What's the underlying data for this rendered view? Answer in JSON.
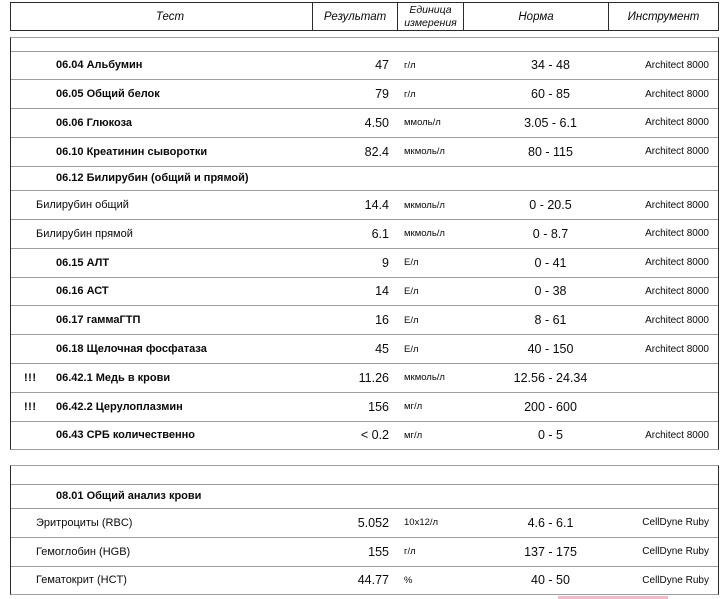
{
  "colors": {
    "text": "#0a0a0a",
    "outer_border": "#2b2b2b",
    "row_line": "#9e9e9e",
    "highlight_pink": "#f0bcc8"
  },
  "header": {
    "test": "Тест",
    "result": "Результат",
    "unit_line1": "Единица",
    "unit_line2": "измерения",
    "norm": "Норма",
    "instrument": "Инструмент"
  },
  "tables": [
    {
      "rows": [
        {
          "flag": "",
          "name": "06.04 Альбумин",
          "bold": true,
          "section": false,
          "result": "47",
          "unit": "г/л",
          "norm": "34 - 48",
          "instrument": "Architect 8000"
        },
        {
          "flag": "",
          "name": "06.05 Общий белок",
          "bold": true,
          "section": false,
          "result": "79",
          "unit": "г/л",
          "norm": "60 - 85",
          "instrument": "Architect 8000"
        },
        {
          "flag": "",
          "name": "06.06 Глюкоза",
          "bold": true,
          "section": false,
          "result": "4.50",
          "unit": "ммоль/л",
          "norm": "3.05 - 6.1",
          "instrument": "Architect 8000"
        },
        {
          "flag": "",
          "name": "06.10 Креатинин сыворотки",
          "bold": true,
          "section": false,
          "result": "82.4",
          "unit": "мкмоль/л",
          "norm": "80 - 115",
          "instrument": "Architect 8000"
        },
        {
          "flag": "",
          "name": "06.12 Билирубин (общий и прямой)",
          "bold": true,
          "section": true,
          "result": "",
          "unit": "",
          "norm": "",
          "instrument": ""
        },
        {
          "flag": "",
          "name": "Билирубин общий",
          "bold": false,
          "section": false,
          "result": "14.4",
          "unit": "мкмоль/л",
          "norm": "0 - 20.5",
          "instrument": "Architect 8000"
        },
        {
          "flag": "",
          "name": "Билирубин прямой",
          "bold": false,
          "section": false,
          "result": "6.1",
          "unit": "мкмоль/л",
          "norm": "0 - 8.7",
          "instrument": "Architect 8000"
        },
        {
          "flag": "",
          "name": "06.15 АЛТ",
          "bold": true,
          "section": false,
          "result": "9",
          "unit": "Е/л",
          "norm": "0 - 41",
          "instrument": "Architect 8000"
        },
        {
          "flag": "",
          "name": "06.16 АСТ",
          "bold": true,
          "section": false,
          "result": "14",
          "unit": "Е/л",
          "norm": "0 - 38",
          "instrument": "Architect 8000"
        },
        {
          "flag": "",
          "name": "06.17 гаммаГТП",
          "bold": true,
          "section": false,
          "result": "16",
          "unit": "Е/л",
          "norm": "8 - 61",
          "instrument": "Architect 8000"
        },
        {
          "flag": "",
          "name": "06.18 Щелочная фосфатаза",
          "bold": true,
          "section": false,
          "result": "45",
          "unit": "Е/л",
          "norm": "40 - 150",
          "instrument": "Architect 8000"
        },
        {
          "flag": "!!!",
          "name": "06.42.1 Медь в крови",
          "bold": true,
          "section": false,
          "result": "11.26",
          "unit": "мкмоль/л",
          "norm": "12.56 - 24.34",
          "instrument": ""
        },
        {
          "flag": "!!!",
          "name": "06.42.2 Церулоплазмин",
          "bold": true,
          "section": false,
          "result": "156",
          "unit": "мг/л",
          "norm": "200 - 600",
          "instrument": ""
        },
        {
          "flag": "",
          "name": "06.43 СРБ количественно",
          "bold": true,
          "section": false,
          "result": "< 0.2",
          "unit": "мг/л",
          "norm": "0 - 5",
          "instrument": "Architect 8000"
        }
      ]
    },
    {
      "rows": [
        {
          "flag": "",
          "name": "08.01 Общий анализ крови",
          "bold": true,
          "section": true,
          "result": "",
          "unit": "",
          "norm": "",
          "instrument": ""
        },
        {
          "flag": "",
          "name": "Эритроциты (RBC)",
          "bold": false,
          "section": false,
          "result": "5.052",
          "unit": "10х12/л",
          "norm": "4.6 - 6.1",
          "instrument": "CellDyne Ruby"
        },
        {
          "flag": "",
          "name": "Гемоглобин (HGB)",
          "bold": false,
          "section": false,
          "result": "155",
          "unit": "г/л",
          "norm": "137 - 175",
          "instrument": "CellDyne Ruby"
        },
        {
          "flag": "",
          "name": "Гематокрит (HCT)",
          "bold": false,
          "section": false,
          "result": "44.77",
          "unit": "%",
          "norm": "40 - 50",
          "instrument": "CellDyne Ruby"
        }
      ]
    }
  ]
}
